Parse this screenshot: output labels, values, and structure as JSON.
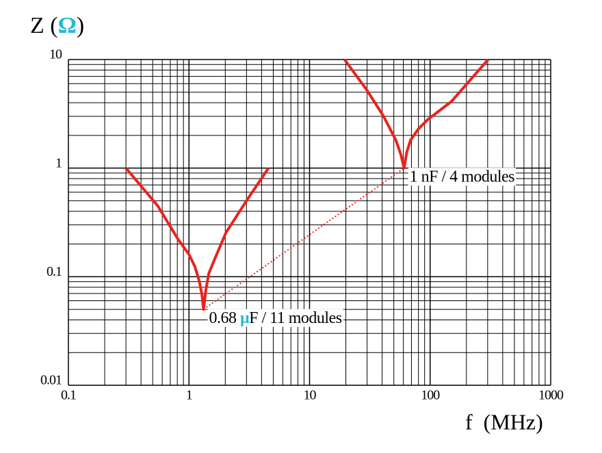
{
  "chart_data": {
    "type": "line",
    "ylabel_parts": [
      "Z (",
      "Ω",
      ")"
    ],
    "xlabel": "f  (MHz)",
    "accent_color": "#22bcd0",
    "xscale": "log",
    "yscale": "log",
    "xlim": [
      0.1,
      1000
    ],
    "ylim": [
      0.01,
      10
    ],
    "xticks": [
      0.1,
      1,
      10,
      100,
      1000
    ],
    "yticks": [
      0.01,
      0.1,
      1,
      10
    ],
    "grid": true,
    "minor_grid": true,
    "series": [
      {
        "color": "#e8231f",
        "x": [
          0.3,
          0.55,
          0.81,
          1.0,
          1.12,
          1.22,
          1.28,
          1.32,
          1.38,
          1.46,
          1.67,
          2.03,
          3.0,
          4.56
        ],
        "values": [
          1,
          0.45,
          0.222,
          0.16,
          0.124,
          0.09,
          0.069,
          0.05,
          0.075,
          0.107,
          0.154,
          0.255,
          0.5,
          1
        ]
      },
      {
        "color": "#e8231f",
        "x": [
          19.5,
          30,
          41.1,
          52,
          57,
          60.8,
          64,
          68.8,
          80,
          95.6,
          150,
          303
        ],
        "values": [
          10,
          5.2,
          3.0,
          1.81,
          1.35,
          1,
          1.4,
          1.81,
          2.3,
          2.8,
          4.1,
          10
        ]
      },
      {
        "color": "#e8231f",
        "dashed": true,
        "x": [
          1.32,
          60.8
        ],
        "values": [
          0.05,
          1
        ]
      }
    ],
    "annotations": [
      {
        "parts": [
          "1 nF / 4 modules"
        ],
        "x": 60.8,
        "y": 1
      },
      {
        "parts": [
          "0.68 ",
          "μ",
          "F / 11 modules"
        ],
        "x": 1.32,
        "y": 0.05
      }
    ]
  }
}
